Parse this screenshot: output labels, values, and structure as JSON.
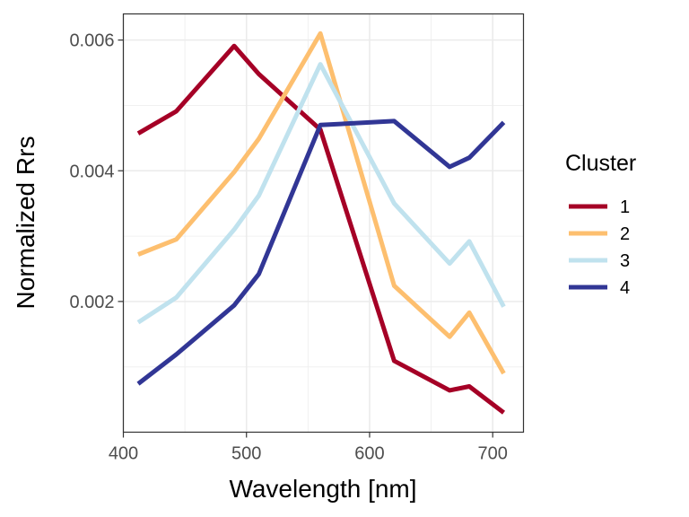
{
  "chart_data": {
    "type": "line",
    "xlabel": "Wavelength [nm]",
    "ylabel": "Normalized Rrs",
    "xlim": [
      400,
      725
    ],
    "ylim": [
      0.0,
      0.0064
    ],
    "x_ticks": [
      400,
      500,
      600,
      700
    ],
    "x_tick_labels": [
      "400",
      "500",
      "600",
      "700"
    ],
    "y_ticks": [
      0.002,
      0.004,
      0.006
    ],
    "y_tick_labels": [
      "0.002",
      "0.004",
      "0.006"
    ],
    "grid": true,
    "legend": {
      "title": "Cluster",
      "placement": "right"
    },
    "x": [
      412,
      443,
      490,
      510,
      560,
      620,
      665,
      681,
      709
    ],
    "series": [
      {
        "name": "1",
        "color": "#a50026",
        "values": [
          0.00457,
          0.00491,
          0.00591,
          0.00548,
          0.00463,
          0.00109,
          0.00064,
          0.0007,
          0.0003
        ]
      },
      {
        "name": "2",
        "color": "#fdbf6f",
        "values": [
          0.00272,
          0.00295,
          0.00398,
          0.00449,
          0.0061,
          0.00224,
          0.00146,
          0.00183,
          0.0009
        ]
      },
      {
        "name": "3",
        "color": "#c0e2ee",
        "values": [
          0.00168,
          0.00206,
          0.0031,
          0.00362,
          0.00563,
          0.0035,
          0.00258,
          0.00292,
          0.00192
        ]
      },
      {
        "name": "4",
        "color": "#313695",
        "values": [
          0.00074,
          0.00119,
          0.00194,
          0.00242,
          0.0047,
          0.00476,
          0.00406,
          0.0042,
          0.00474
        ]
      }
    ]
  }
}
